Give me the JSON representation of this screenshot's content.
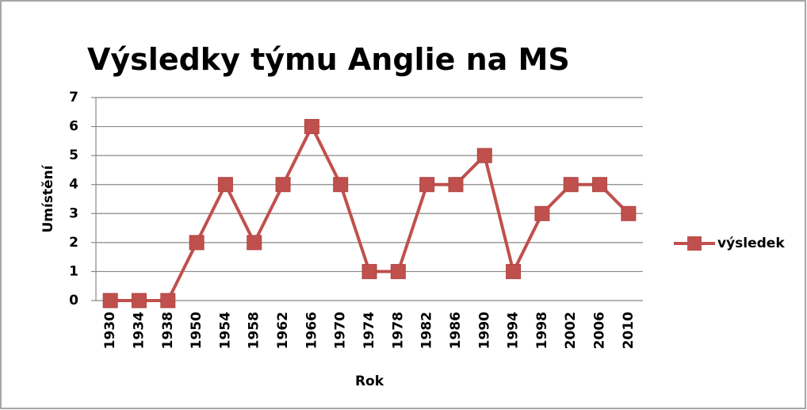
{
  "chart_data": {
    "type": "line",
    "title": "Výsledky týmu Anglie na MS",
    "x_label": "Rok",
    "y_label": "Umístění",
    "categories": [
      "1930",
      "1934",
      "1938",
      "1950",
      "1954",
      "1958",
      "1962",
      "1966",
      "1970",
      "1974",
      "1978",
      "1982",
      "1986",
      "1990",
      "1994",
      "1998",
      "2002",
      "2006",
      "2010"
    ],
    "series": [
      {
        "name": "výsledek",
        "color": "#c0504d",
        "values": [
          0,
          0,
          0,
          2,
          4,
          2,
          4,
          6,
          4,
          1,
          1,
          4,
          4,
          5,
          1,
          3,
          4,
          4,
          3
        ]
      }
    ],
    "ylim": [
      0,
      7
    ],
    "yticks": [
      0,
      1,
      2,
      3,
      4,
      5,
      6,
      7
    ],
    "grid": true,
    "legend": "right"
  }
}
